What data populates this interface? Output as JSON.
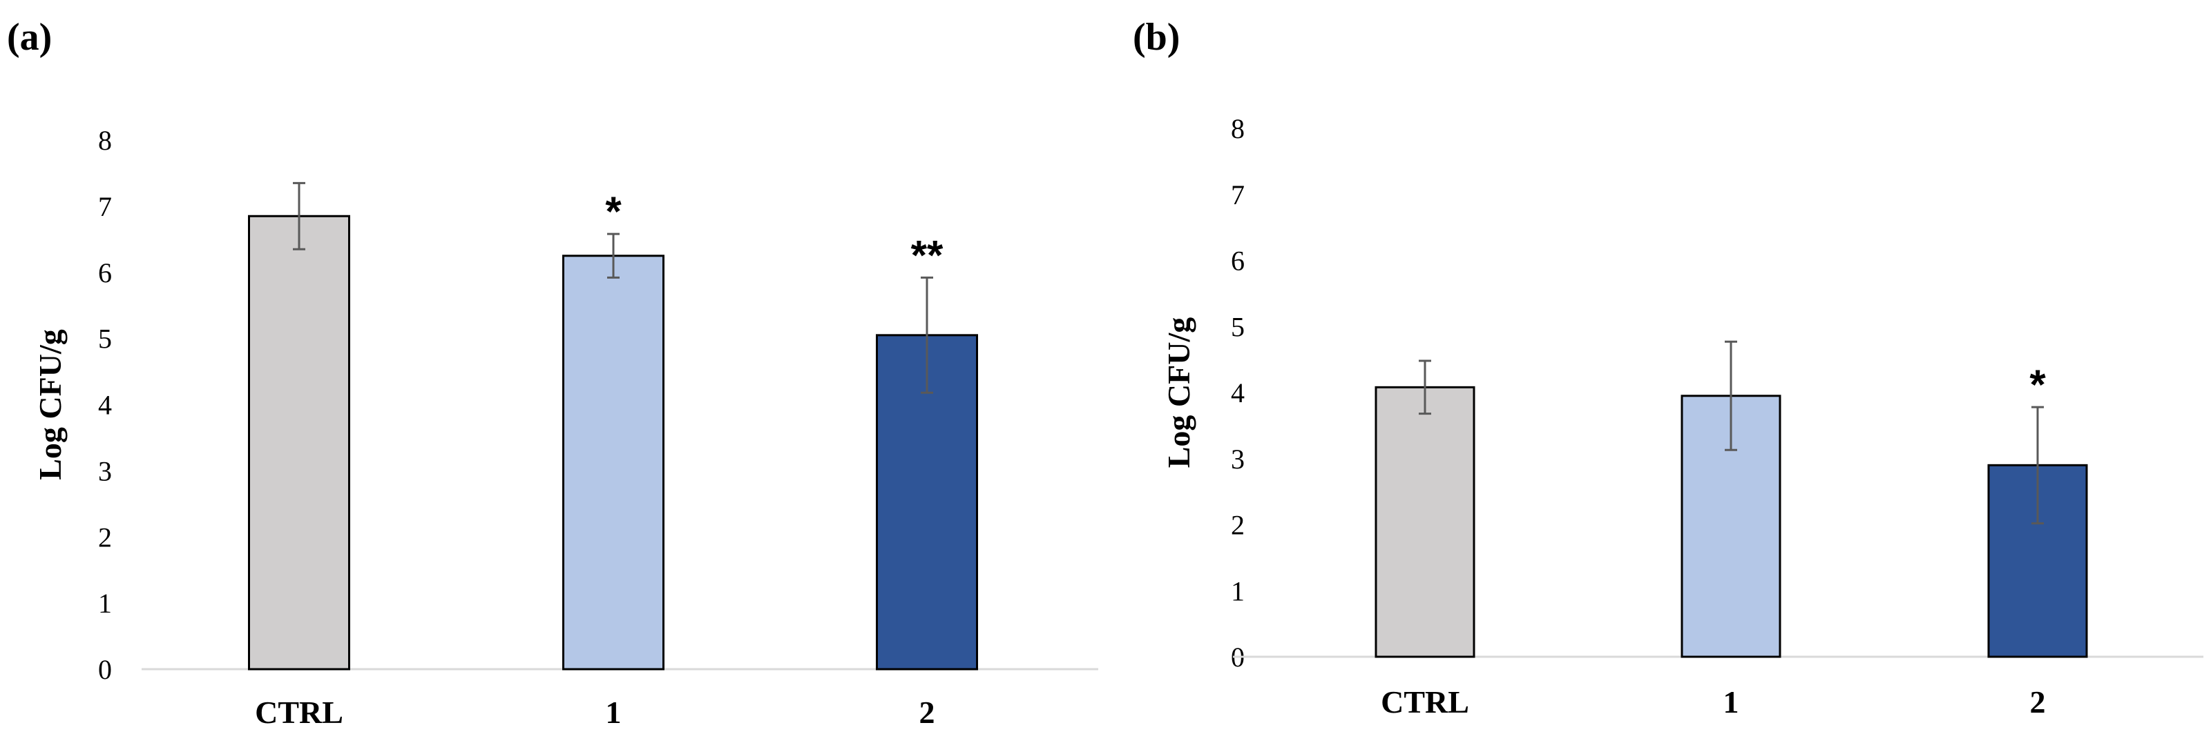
{
  "chart_data": [
    {
      "panel_label": "(a)",
      "type": "bar",
      "title": "",
      "xlabel": "",
      "ylabel": "Log CFU/g",
      "ylim": [
        0,
        8
      ],
      "yticks": [
        "0",
        "1",
        "2",
        "3",
        "4",
        "5",
        "6",
        "7",
        "8"
      ],
      "categories": [
        "CTRL",
        "1",
        "2"
      ],
      "values": [
        6.85,
        6.25,
        5.05
      ],
      "errors": [
        0.5,
        0.33,
        0.87
      ],
      "significance": [
        "",
        "*",
        "**"
      ],
      "colors": [
        "#d0cece",
        "#b4c7e7",
        "#2f5597"
      ],
      "grid": false
    },
    {
      "panel_label": "(b)",
      "type": "bar",
      "title": "",
      "xlabel": "",
      "ylabel": "Log CFU/g",
      "ylim": [
        0,
        8
      ],
      "yticks": [
        "0",
        "1",
        "2",
        "3",
        "4",
        "5",
        "6",
        "7",
        "8"
      ],
      "categories": [
        "CTRL",
        "1",
        "2"
      ],
      "values": [
        4.08,
        3.95,
        2.9
      ],
      "errors": [
        0.4,
        0.82,
        0.88
      ],
      "significance": [
        "",
        "",
        "*"
      ],
      "colors": [
        "#d0cece",
        "#b4c7e7",
        "#2f5597"
      ],
      "grid": false
    }
  ]
}
